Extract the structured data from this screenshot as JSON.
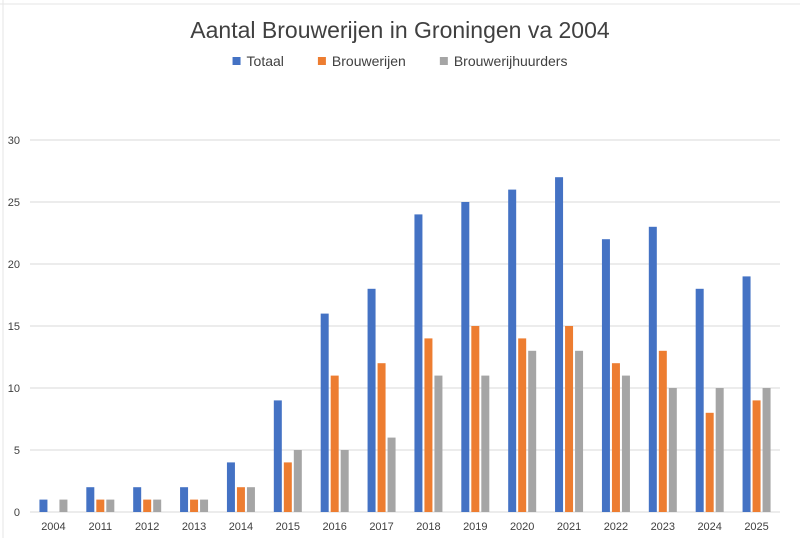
{
  "chart_data": {
    "type": "bar",
    "title": "Aantal Brouwerijen in Groningen va 2004",
    "xlabel": "",
    "ylabel": "",
    "ylim": [
      0,
      30
    ],
    "yticks": [
      0,
      5,
      10,
      15,
      20,
      25,
      30
    ],
    "grid": true,
    "legend": "top",
    "categories": [
      "2004",
      "2011",
      "2012",
      "2013",
      "2014",
      "2015",
      "2016",
      "2017",
      "2018",
      "2019",
      "2020",
      "2021",
      "2022",
      "2023",
      "2024",
      "2025"
    ],
    "series": [
      {
        "name": "Totaal",
        "color": "#4472c4",
        "values": [
          1,
          2,
          2,
          2,
          4,
          9,
          16,
          18,
          24,
          25,
          26,
          27,
          22,
          23,
          18,
          19
        ]
      },
      {
        "name": "Brouwerijen",
        "color": "#ed7d31",
        "values": [
          0,
          1,
          1,
          1,
          2,
          4,
          11,
          12,
          14,
          15,
          14,
          15,
          12,
          13,
          8,
          9
        ]
      },
      {
        "name": "Brouwerijhuurders",
        "color": "#a5a5a5",
        "values": [
          1,
          1,
          1,
          1,
          2,
          5,
          5,
          6,
          11,
          11,
          13,
          13,
          11,
          10,
          10,
          10
        ]
      }
    ]
  }
}
